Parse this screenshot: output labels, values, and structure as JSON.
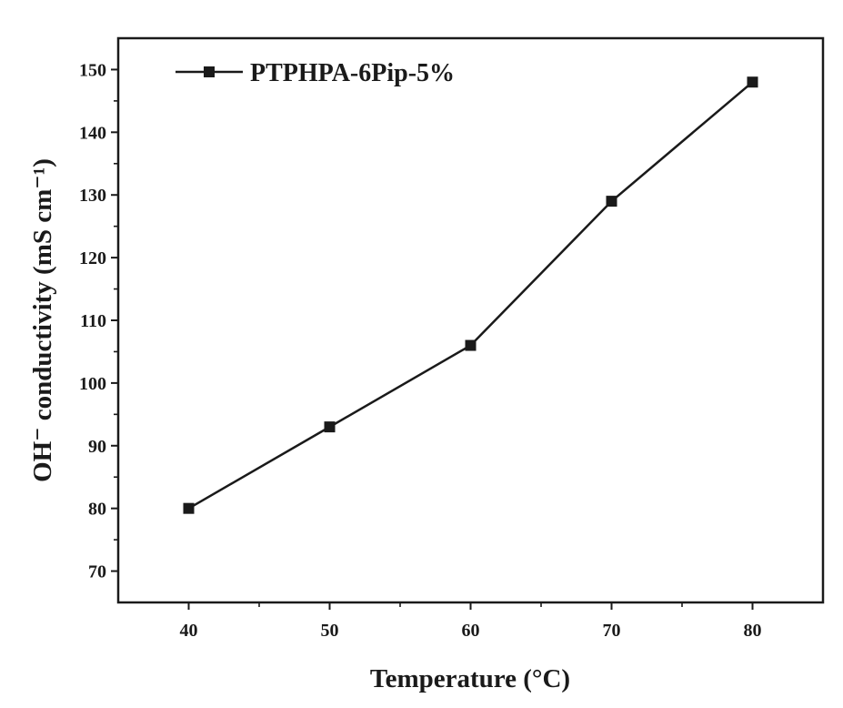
{
  "chart_data": {
    "type": "line",
    "title": "",
    "xlabel": "Temperature (°C)",
    "ylabel": "OH⁻ conductivity (mS cm⁻¹)",
    "xlim": [
      35,
      85
    ],
    "ylim": [
      65,
      155
    ],
    "x_ticks": [
      40,
      50,
      60,
      70,
      80
    ],
    "y_ticks": [
      70,
      80,
      90,
      100,
      110,
      120,
      130,
      140,
      150
    ],
    "grid": false,
    "legend_position": "top-left",
    "series": [
      {
        "name": "PTPHPA-6Pip-5%",
        "marker": "square",
        "color": "#1a1a1a",
        "x": [
          40,
          50,
          60,
          70,
          80
        ],
        "y": [
          80,
          93,
          106,
          129,
          148
        ]
      }
    ]
  }
}
